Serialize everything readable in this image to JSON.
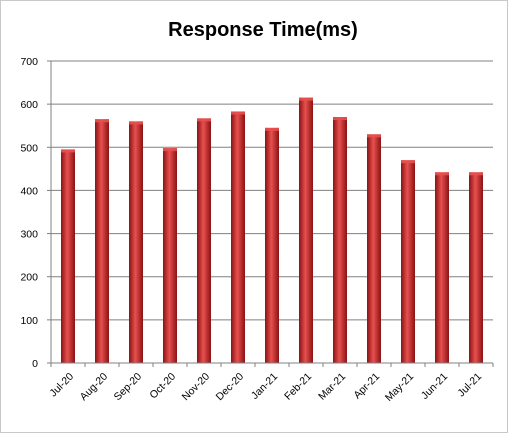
{
  "chart_data": {
    "type": "bar",
    "title": "Response Time(ms)",
    "xlabel": "",
    "ylabel": "",
    "categories": [
      "Jul-20",
      "Aug-20",
      "Sep-20",
      "Oct-20",
      "Nov-20",
      "Dec-20",
      "Jan-21",
      "Feb-21",
      "Mar-21",
      "Apr-21",
      "May-21",
      "Jun-21",
      "Jul-21"
    ],
    "values": [
      495,
      565,
      560,
      498,
      567,
      583,
      545,
      615,
      570,
      530,
      470,
      442,
      442
    ],
    "ylim": [
      0,
      700
    ],
    "yticks": [
      0,
      100,
      200,
      300,
      400,
      500,
      600,
      700
    ],
    "grid": true,
    "legend": "none",
    "colors": {
      "bar": "#c0282a",
      "bar_light": "#e8504e",
      "bar_dark": "#8a1213",
      "gridline": "#808080",
      "axis": "#808080"
    }
  }
}
